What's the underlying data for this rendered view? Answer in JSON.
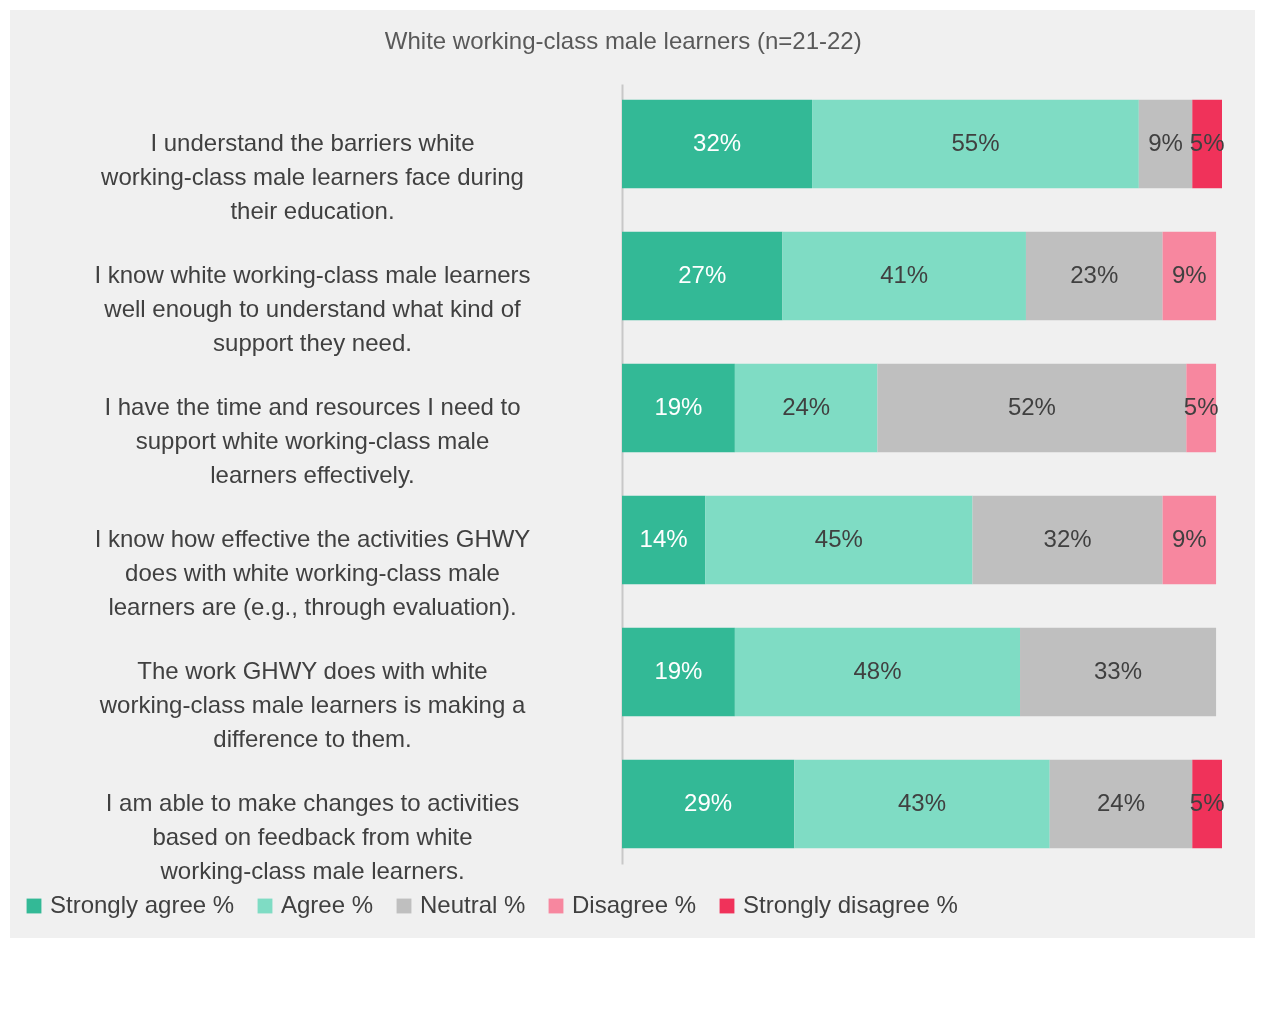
{
  "chart_data": {
    "type": "bar",
    "orientation": "horizontal",
    "stacked": true,
    "title": "White working-class male learners (n=21-22)",
    "categories": [
      "I understand the barriers white working-class male learners face during their education.",
      "I know white working-class male learners well enough to understand what kind of support they need.",
      "I have the time and resources I need to support white working-class male learners effectively.",
      "I know how effective the activities GHWY does with white working-class male learners are (e.g., through evaluation).",
      "The work GHWY does with white working-class male learners is making a difference to them.",
      "I am able to make changes to activities based on feedback from white working-class male learners."
    ],
    "series": [
      {
        "name": "Strongly agree %",
        "color": "#33b996",
        "values": [
          32,
          27,
          19,
          14,
          19,
          29
        ],
        "value_labels": [
          "32%",
          "27%",
          "19%",
          "14%",
          "19%",
          "29%"
        ]
      },
      {
        "name": "Agree %",
        "color": "#7fdcc4",
        "values": [
          55,
          41,
          24,
          45,
          48,
          43
        ],
        "value_labels": [
          "55%",
          "41%",
          "24%",
          "45%",
          "48%",
          "43%"
        ]
      },
      {
        "name": "Neutral %",
        "color": "#bfbfbf",
        "values": [
          9,
          23,
          52,
          32,
          33,
          24
        ],
        "value_labels": [
          "9%",
          "23%",
          "52%",
          "32%",
          "33%",
          "24%"
        ]
      },
      {
        "name": "Disagree %",
        "color": "#f7879f",
        "values": [
          null,
          9,
          5,
          9,
          null,
          null
        ],
        "value_labels": [
          null,
          "9%",
          "5%",
          "9%",
          null,
          null
        ]
      },
      {
        "name": "Strongly disagree %",
        "color": "#f0325a",
        "values": [
          5,
          null,
          null,
          null,
          null,
          5
        ],
        "value_labels": [
          "5%",
          null,
          null,
          null,
          null,
          "5%"
        ]
      }
    ],
    "xlim": [
      0,
      101
    ],
    "tick_labels": "y",
    "legend": "bottom"
  }
}
